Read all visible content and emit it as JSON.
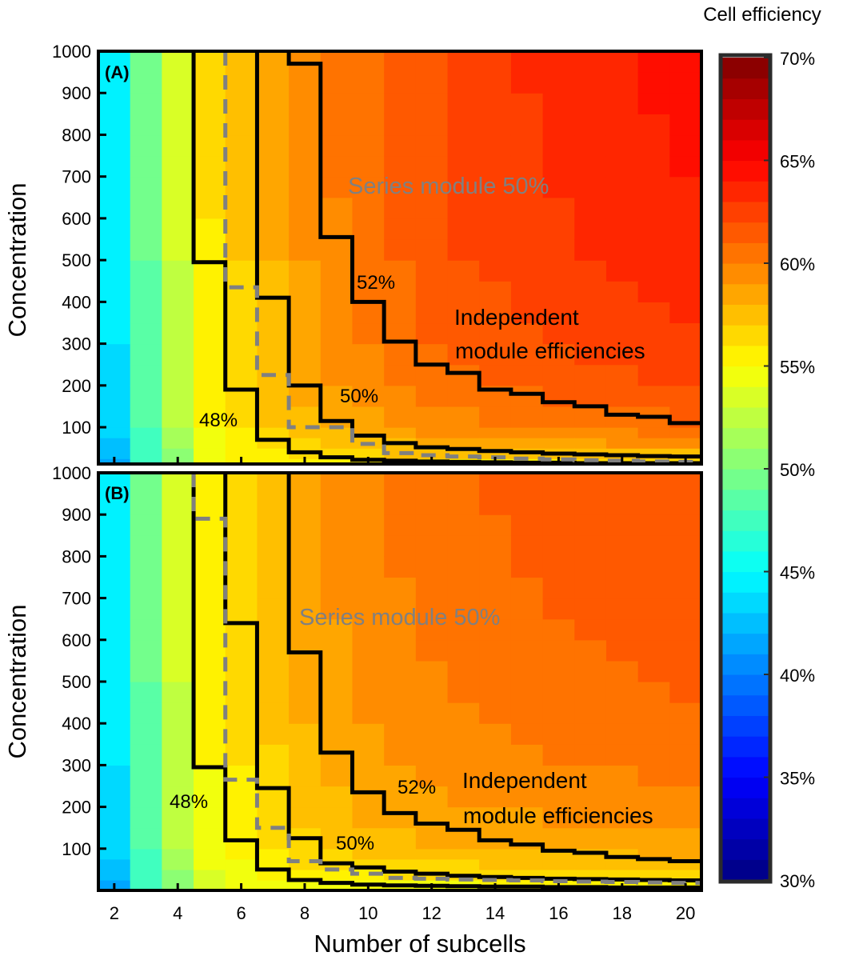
{
  "chart_data": [
    {
      "type": "heatmap",
      "panel_label": "(A)",
      "xlabel": "Number of subcells",
      "ylabel": "Concentration",
      "xlim": [
        1.5,
        20.5
      ],
      "ylim": [
        12,
        1000
      ],
      "x_ticks": [
        2,
        4,
        6,
        8,
        10,
        12,
        14,
        16,
        18,
        20
      ],
      "y_ticks": [
        100,
        200,
        300,
        400,
        500,
        600,
        700,
        800,
        900,
        1000
      ],
      "subcells": [
        2,
        3,
        4,
        5,
        6,
        7,
        8,
        9,
        10,
        11,
        12,
        13,
        14,
        15,
        16,
        17,
        18,
        19,
        20
      ],
      "grid_concentrations": [
        15,
        50,
        100,
        200,
        500,
        1000
      ],
      "efficiency_percent": [
        [
          41.5,
          47,
          50,
          54,
          55,
          55,
          55.5,
          55.5,
          55.5,
          55.5,
          55.5,
          55.5,
          55.5,
          55.5,
          55.5,
          55.5,
          55.5,
          55.5,
          55.5
        ],
        [
          42.5,
          47.5,
          51,
          54.5,
          55.5,
          56,
          56.5,
          57,
          57.2,
          57.5,
          57.8,
          58,
          58,
          58.2,
          58.3,
          58.4,
          58.5,
          58.6,
          58.6
        ],
        [
          43.3,
          48,
          52,
          55,
          56,
          57,
          57.5,
          58,
          58.5,
          59,
          59.3,
          59.5,
          59.7,
          59.9,
          60,
          60.2,
          60.3,
          60.4,
          60.5
        ],
        [
          43.8,
          48.5,
          52.5,
          55,
          56.5,
          57.5,
          58.5,
          59,
          59.5,
          60,
          60.5,
          60.8,
          61,
          61.2,
          61.4,
          61.6,
          61.8,
          62,
          62.1
        ],
        [
          44.3,
          49,
          53,
          55.8,
          57,
          58,
          59,
          59.8,
          60.5,
          61,
          61.5,
          62,
          62.2,
          62.5,
          62.7,
          63,
          63.2,
          63.4,
          63.6
        ],
        [
          45,
          50,
          54,
          56.5,
          57.3,
          58.5,
          59.5,
          60.3,
          61,
          61.6,
          62,
          62.5,
          62.8,
          63.1,
          63.4,
          63.7,
          64,
          64.2,
          64.4
        ]
      ],
      "contours": [
        {
          "level": "48%",
          "style": "solid",
          "thresholds": [
            null,
            null,
            null,
            495,
            190,
            70,
            40,
            28,
            22,
            20,
            18,
            17,
            16,
            15,
            15,
            14,
            14,
            13,
            13
          ]
        },
        {
          "level": "50%",
          "style": "solid",
          "thresholds": [
            null,
            null,
            null,
            null,
            null,
            410,
            200,
            115,
            80,
            62,
            52,
            48,
            43,
            40,
            37,
            35,
            33,
            31,
            30
          ]
        },
        {
          "level": "52%",
          "style": "solid",
          "thresholds": [
            null,
            null,
            null,
            null,
            null,
            null,
            970,
            555,
            400,
            305,
            250,
            230,
            190,
            180,
            160,
            150,
            130,
            125,
            110
          ]
        },
        {
          "level": "Series module 50%",
          "style": "dashed",
          "thresholds": [
            null,
            null,
            null,
            null,
            435,
            225,
            100,
            100,
            60,
            38,
            33,
            30,
            28,
            25,
            23,
            21,
            20,
            18,
            17
          ]
        }
      ],
      "annotations": {
        "series": "Series module 50%",
        "c52": "52%",
        "independent_1": "Independent",
        "independent_2": "module efficiencies",
        "c50": "50%",
        "c48": "48%"
      }
    },
    {
      "type": "heatmap",
      "panel_label": "(B)",
      "xlabel": "Number of subcells",
      "ylabel": "Concentration",
      "xlim": [
        1.5,
        20.5
      ],
      "ylim": [
        0,
        1000
      ],
      "x_ticks": [
        2,
        4,
        6,
        8,
        10,
        12,
        14,
        16,
        18,
        20
      ],
      "y_ticks": [
        100,
        200,
        300,
        400,
        500,
        600,
        700,
        800,
        900,
        1000
      ],
      "subcells": [
        2,
        3,
        4,
        5,
        6,
        7,
        8,
        9,
        10,
        11,
        12,
        13,
        14,
        15,
        16,
        17,
        18,
        19,
        20
      ],
      "grid_concentrations": [
        15,
        50,
        100,
        200,
        500,
        1000
      ],
      "efficiency_percent": [
        [
          41.5,
          47,
          50,
          53.5,
          54.2,
          54.5,
          54.6,
          54.7,
          54.8,
          54.8,
          54.9,
          54.9,
          55,
          55,
          55,
          55,
          55,
          55,
          55
        ],
        [
          42.5,
          47.5,
          51,
          54,
          54.8,
          55.3,
          55.8,
          56,
          56.2,
          56.4,
          56.5,
          56.6,
          56.7,
          56.7,
          56.8,
          56.8,
          56.9,
          56.9,
          57
        ],
        [
          43.3,
          48,
          52,
          54.5,
          55.2,
          56,
          56.6,
          57,
          57.3,
          57.5,
          57.7,
          57.8,
          57.9,
          58,
          58.1,
          58.2,
          58.2,
          58.3,
          58.3
        ],
        [
          43.8,
          48.5,
          52.5,
          54.8,
          55.7,
          56.6,
          57.3,
          57.8,
          58.2,
          58.5,
          58.7,
          58.9,
          59.1,
          59.2,
          59.3,
          59.4,
          59.5,
          59.6,
          59.7
        ],
        [
          44.3,
          49,
          53,
          55.2,
          56.3,
          57.3,
          58.2,
          58.8,
          59.3,
          59.6,
          59.9,
          60.1,
          60.3,
          60.5,
          60.7,
          60.8,
          60.9,
          61,
          61.1
        ],
        [
          45,
          50,
          54,
          55.7,
          56.8,
          57.8,
          58.8,
          59.4,
          59.9,
          60.3,
          60.6,
          60.9,
          61.1,
          61.3,
          61.5,
          61.6,
          61.7,
          61.8,
          61.9
        ]
      ],
      "contours": [
        {
          "level": "48%",
          "style": "solid",
          "thresholds": [
            null,
            null,
            null,
            295,
            120,
            50,
            25,
            18,
            14,
            12,
            11,
            10,
            9,
            9,
            8,
            8,
            7,
            7,
            7
          ]
        },
        {
          "level": "50%",
          "style": "solid",
          "thresholds": [
            null,
            null,
            null,
            null,
            640,
            245,
            125,
            65,
            55,
            45,
            40,
            35,
            32,
            30,
            28,
            27,
            26,
            25,
            24
          ]
        },
        {
          "level": "52%",
          "style": "solid",
          "thresholds": [
            null,
            null,
            null,
            null,
            null,
            null,
            570,
            330,
            235,
            185,
            160,
            145,
            120,
            110,
            95,
            90,
            80,
            75,
            70
          ]
        },
        {
          "level": "Series module 50%",
          "style": "dashed",
          "thresholds": [
            null,
            null,
            null,
            890,
            265,
            150,
            70,
            50,
            40,
            30,
            28,
            26,
            25,
            24,
            22,
            21,
            20,
            19,
            18
          ]
        }
      ],
      "annotations": {
        "series": "Series module 50%",
        "c52": "52%",
        "independent_1": "Independent",
        "independent_2": "module efficiencies",
        "c50": "50%",
        "c48": "48%"
      }
    }
  ],
  "colorbar": {
    "title": "Cell efficiency",
    "colormap": "jet",
    "range_percent": [
      30,
      70
    ],
    "levels": 40,
    "tick_labels": [
      "30%",
      "35%",
      "40%",
      "45%",
      "50%",
      "55%",
      "60%",
      "65%",
      "70%"
    ]
  },
  "colors": {
    "contour": "#000000",
    "series_contour": "#808080",
    "series_text": "#808080"
  }
}
